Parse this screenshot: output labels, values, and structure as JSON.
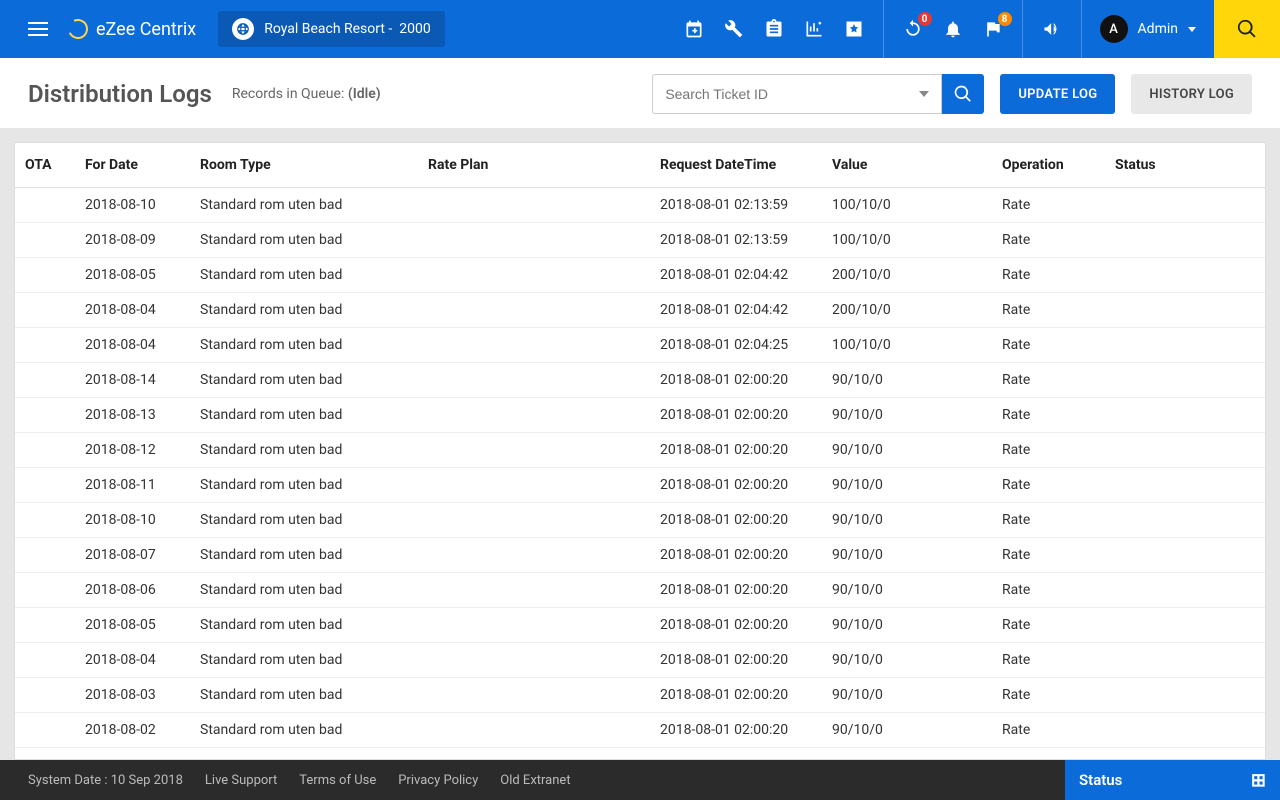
{
  "header": {
    "app_name": "eZee Centrix",
    "property_name": "Royal Beach Resort -",
    "property_code": "2000",
    "badge_refresh": "0",
    "badge_flag": "8",
    "user_initial": "A",
    "user_name": "Admin"
  },
  "page": {
    "title": "Distribution Logs",
    "queue_label": "Records in Queue:",
    "queue_status": "(Idle)",
    "search_placeholder": "Search Ticket ID",
    "btn_update": "UPDATE LOG",
    "btn_history": "HISTORY LOG"
  },
  "table": {
    "columns": [
      "OTA",
      "For Date",
      "Room Type",
      "Rate Plan",
      "Request DateTime",
      "Value",
      "Operation",
      "Status"
    ],
    "rows": [
      {
        "ota": "",
        "for_date": "2018-08-10",
        "room_type": "Standard rom uten bad",
        "rate_plan": "",
        "request_dt": "2018-08-01 02:13:59",
        "value": "100/10/0",
        "operation": "Rate",
        "status": ""
      },
      {
        "ota": "",
        "for_date": "2018-08-09",
        "room_type": "Standard rom uten bad",
        "rate_plan": "",
        "request_dt": "2018-08-01 02:13:59",
        "value": "100/10/0",
        "operation": "Rate",
        "status": ""
      },
      {
        "ota": "",
        "for_date": "2018-08-05",
        "room_type": "Standard rom uten bad",
        "rate_plan": "",
        "request_dt": "2018-08-01 02:04:42",
        "value": "200/10/0",
        "operation": "Rate",
        "status": ""
      },
      {
        "ota": "",
        "for_date": "2018-08-04",
        "room_type": "Standard rom uten bad",
        "rate_plan": "",
        "request_dt": "2018-08-01 02:04:42",
        "value": "200/10/0",
        "operation": "Rate",
        "status": ""
      },
      {
        "ota": "",
        "for_date": "2018-08-04",
        "room_type": "Standard rom uten bad",
        "rate_plan": "",
        "request_dt": "2018-08-01 02:04:25",
        "value": "100/10/0",
        "operation": "Rate",
        "status": ""
      },
      {
        "ota": "",
        "for_date": "2018-08-14",
        "room_type": "Standard rom uten bad",
        "rate_plan": "",
        "request_dt": "2018-08-01 02:00:20",
        "value": "90/10/0",
        "operation": "Rate",
        "status": ""
      },
      {
        "ota": "",
        "for_date": "2018-08-13",
        "room_type": "Standard rom uten bad",
        "rate_plan": "",
        "request_dt": "2018-08-01 02:00:20",
        "value": "90/10/0",
        "operation": "Rate",
        "status": ""
      },
      {
        "ota": "",
        "for_date": "2018-08-12",
        "room_type": "Standard rom uten bad",
        "rate_plan": "",
        "request_dt": "2018-08-01 02:00:20",
        "value": "90/10/0",
        "operation": "Rate",
        "status": ""
      },
      {
        "ota": "",
        "for_date": "2018-08-11",
        "room_type": "Standard rom uten bad",
        "rate_plan": "",
        "request_dt": "2018-08-01 02:00:20",
        "value": "90/10/0",
        "operation": "Rate",
        "status": ""
      },
      {
        "ota": "",
        "for_date": "2018-08-10",
        "room_type": "Standard rom uten bad",
        "rate_plan": "",
        "request_dt": "2018-08-01 02:00:20",
        "value": "90/10/0",
        "operation": "Rate",
        "status": ""
      },
      {
        "ota": "",
        "for_date": "2018-08-07",
        "room_type": "Standard rom uten bad",
        "rate_plan": "",
        "request_dt": "2018-08-01 02:00:20",
        "value": "90/10/0",
        "operation": "Rate",
        "status": ""
      },
      {
        "ota": "",
        "for_date": "2018-08-06",
        "room_type": "Standard rom uten bad",
        "rate_plan": "",
        "request_dt": "2018-08-01 02:00:20",
        "value": "90/10/0",
        "operation": "Rate",
        "status": ""
      },
      {
        "ota": "",
        "for_date": "2018-08-05",
        "room_type": "Standard rom uten bad",
        "rate_plan": "",
        "request_dt": "2018-08-01 02:00:20",
        "value": "90/10/0",
        "operation": "Rate",
        "status": ""
      },
      {
        "ota": "",
        "for_date": "2018-08-04",
        "room_type": "Standard rom uten bad",
        "rate_plan": "",
        "request_dt": "2018-08-01 02:00:20",
        "value": "90/10/0",
        "operation": "Rate",
        "status": ""
      },
      {
        "ota": "",
        "for_date": "2018-08-03",
        "room_type": "Standard rom uten bad",
        "rate_plan": "",
        "request_dt": "2018-08-01 02:00:20",
        "value": "90/10/0",
        "operation": "Rate",
        "status": ""
      },
      {
        "ota": "",
        "for_date": "2018-08-02",
        "room_type": "Standard rom uten bad",
        "rate_plan": "",
        "request_dt": "2018-08-01 02:00:20",
        "value": "90/10/0",
        "operation": "Rate",
        "status": ""
      }
    ]
  },
  "footer": {
    "system_date": "System Date : 10 Sep 2018",
    "links": [
      "Live Support",
      "Terms of Use",
      "Privacy Policy",
      "Old Extranet"
    ],
    "status_label": "Status"
  },
  "colors": {
    "primary": "#0b6bd8",
    "primary_dark": "#0a59b5",
    "accent_yellow": "#ffd60a",
    "badge_red": "#e53935",
    "badge_orange": "#ff8a00",
    "footer_bg": "#2b2b2b",
    "page_bg": "#e6e6e6",
    "text_dark": "#333",
    "text_muted": "#666",
    "border": "#ddd"
  }
}
